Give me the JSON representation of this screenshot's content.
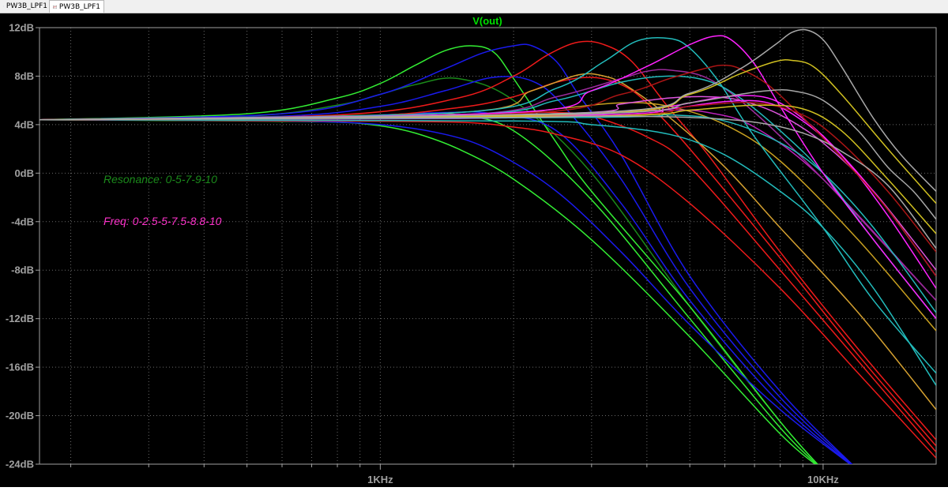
{
  "tabs": [
    {
      "label": "PW3B_LPF1",
      "icon": "schematic-icon"
    },
    {
      "label": "PW3B_LPF1",
      "icon": "waveform-icon"
    }
  ],
  "colors": {
    "background": "#000000",
    "axis": "#a0a0a0",
    "grid": "#6a6a6a",
    "title": "#00e000",
    "resonance_note": "#1b8a1b",
    "freq_note": "#ff33cc"
  },
  "annotations": {
    "resonance": "Resonance: 0-5-7-9-10",
    "freq": "Freq: 0-2.5-5-7.5-8.8-10"
  },
  "chart_data": {
    "type": "line",
    "title": "V(out)",
    "xlabel": "",
    "ylabel": "",
    "x_scale": "log",
    "xlim": [
      170,
      18000
    ],
    "ylim": [
      -24,
      12
    ],
    "x_ticks": [
      {
        "value": 1000,
        "label": "1KHz"
      },
      {
        "value": 10000,
        "label": "10KHz"
      }
    ],
    "y_ticks": [
      {
        "value": 12,
        "label": "12dB"
      },
      {
        "value": 8,
        "label": "8dB"
      },
      {
        "value": 4,
        "label": "4dB"
      },
      {
        "value": 0,
        "label": "0dB"
      },
      {
        "value": -4,
        "label": "-4dB"
      },
      {
        "value": -8,
        "label": "-8dB"
      },
      {
        "value": -12,
        "label": "-12dB"
      },
      {
        "value": -16,
        "label": "-16dB"
      },
      {
        "value": -20,
        "label": "-20dB"
      },
      {
        "value": -24,
        "label": "-24dB"
      }
    ],
    "grid": true,
    "series": [
      {
        "color": "#33ee33",
        "x": [
          170,
          500,
          800,
          1000,
          1200,
          1500,
          2000,
          3000,
          5000,
          8000,
          10000
        ],
        "y": [
          4.4,
          4.3,
          4.2,
          3.9,
          3.3,
          2.0,
          -0.5,
          -5.5,
          -13.5,
          -21.5,
          -24.5
        ]
      },
      {
        "color": "#33ee33",
        "x": [
          170,
          500,
          800,
          1000,
          1200,
          1500,
          2000,
          3000,
          5000,
          8000,
          10000
        ],
        "y": [
          4.4,
          4.5,
          4.7,
          4.8,
          4.9,
          4.8,
          3.5,
          -2.2,
          -12,
          -21,
          -24.5
        ]
      },
      {
        "color": "#1a8a1a",
        "x": [
          170,
          500,
          800,
          1000,
          1200,
          1500,
          2000,
          3000,
          5000,
          8000,
          10000
        ],
        "y": [
          4.4,
          4.7,
          5.6,
          6.5,
          7.3,
          7.8,
          6.0,
          0.0,
          -11,
          -20.5,
          -24.5
        ]
      },
      {
        "color": "#33ee33",
        "x": [
          170,
          500,
          800,
          1000,
          1200,
          1400,
          1600,
          1800,
          2000,
          2500,
          3000,
          5000,
          8000,
          10000
        ],
        "y": [
          4.4,
          4.9,
          6.2,
          7.4,
          8.9,
          10.1,
          10.5,
          10.0,
          7.8,
          2.5,
          -1.5,
          -11,
          -20.5,
          -24.5
        ]
      },
      {
        "color": "#1a1aee",
        "x": [
          170,
          600,
          1000,
          1400,
          1800,
          2500,
          3500,
          5000,
          8000,
          12000
        ],
        "y": [
          4.4,
          4.3,
          4.0,
          3.2,
          1.8,
          -1.5,
          -6.5,
          -12.5,
          -19.5,
          -24.5
        ]
      },
      {
        "color": "#1a1aee",
        "x": [
          170,
          600,
          1000,
          1400,
          1800,
          2500,
          3500,
          5000,
          8000,
          12000
        ],
        "y": [
          4.4,
          4.5,
          4.8,
          5.0,
          4.9,
          3.5,
          -2.5,
          -10.5,
          -19,
          -24.5
        ]
      },
      {
        "color": "#1a1aee",
        "x": [
          170,
          600,
          1000,
          1400,
          1800,
          2200,
          2600,
          3500,
          5000,
          8000,
          12000
        ],
        "y": [
          4.4,
          4.7,
          5.5,
          6.8,
          7.9,
          7.6,
          5.5,
          -0.5,
          -9.5,
          -18.5,
          -24.5
        ]
      },
      {
        "color": "#1a1aee",
        "x": [
          170,
          600,
          1000,
          1400,
          1700,
          2000,
          2200,
          2500,
          2800,
          3500,
          5000,
          8000,
          12000
        ],
        "y": [
          4.4,
          4.9,
          6.5,
          8.6,
          9.9,
          10.5,
          10.5,
          9.2,
          6.5,
          1.5,
          -8.5,
          -18,
          -24.5
        ]
      },
      {
        "color": "#ee1a1a",
        "x": [
          170,
          800,
          1500,
          2000,
          2500,
          3500,
          5000,
          8000,
          12000,
          18000
        ],
        "y": [
          4.4,
          4.3,
          4.2,
          3.8,
          3.2,
          1.5,
          -2.5,
          -9.5,
          -16.5,
          -23.5
        ]
      },
      {
        "color": "#ee1a1a",
        "x": [
          170,
          800,
          1500,
          2000,
          2500,
          3000,
          4000,
          5000,
          8000,
          12000,
          18000
        ],
        "y": [
          4.4,
          4.5,
          4.8,
          5.0,
          5.0,
          4.7,
          3.0,
          0.5,
          -8.0,
          -15.5,
          -23
        ]
      },
      {
        "color": "#ee1a1a",
        "x": [
          170,
          800,
          1500,
          2000,
          2500,
          3000,
          3500,
          4000,
          5000,
          8000,
          12000,
          18000
        ],
        "y": [
          4.4,
          4.6,
          5.4,
          6.3,
          7.5,
          7.9,
          7.3,
          5.8,
          2.0,
          -7.0,
          -15,
          -22.5
        ]
      },
      {
        "color": "#ee1a1a",
        "x": [
          170,
          800,
          1500,
          2000,
          2400,
          2800,
          3200,
          3700,
          4500,
          5500,
          8000,
          12000,
          18000
        ],
        "y": [
          4.4,
          4.8,
          6.2,
          8.0,
          9.8,
          10.8,
          10.6,
          9.2,
          5.3,
          1.5,
          -6.5,
          -14.5,
          -22
        ]
      },
      {
        "color": "#c8a020",
        "x": [
          170,
          1500,
          2500,
          3500,
          4500,
          6000,
          8000,
          12000,
          18000
        ],
        "y": [
          4.4,
          4.6,
          5.3,
          5.8,
          5.5,
          4.0,
          1.0,
          -5.5,
          -13.0
        ]
      },
      {
        "color": "#d4a030",
        "x": [
          170,
          1500,
          2200,
          2800,
          3200,
          3600,
          4500,
          6000,
          8000,
          12000,
          18000
        ],
        "y": [
          4.4,
          5.0,
          6.8,
          8.1,
          8.0,
          7.2,
          4.6,
          0.5,
          -4.5,
          -11.5,
          -19.5
        ]
      },
      {
        "color": "#bb22bb",
        "x": [
          170,
          1500,
          2500,
          3500,
          4500,
          5500,
          7000,
          10000,
          18000
        ],
        "y": [
          4.4,
          4.5,
          4.8,
          5.1,
          5.2,
          5.0,
          3.8,
          -0.5,
          -10.5
        ]
      },
      {
        "color": "#9a2a9a",
        "x": [
          170,
          1500,
          2500,
          3500,
          4000,
          4500,
          5500,
          7000,
          10000,
          18000
        ],
        "y": [
          4.4,
          4.8,
          6.3,
          7.8,
          8.4,
          8.5,
          7.8,
          5.0,
          -0.5,
          -10.5
        ]
      },
      {
        "color": "#dd55dd",
        "x": [
          170,
          2500,
          3500,
          4500,
          5500,
          6500,
          8000,
          10000,
          13000,
          18000
        ],
        "y": [
          4.4,
          4.9,
          5.7,
          6.2,
          6.3,
          6.0,
          4.8,
          2.5,
          -1.5,
          -8.0
        ]
      },
      {
        "color": "#22bbbb",
        "x": [
          170,
          1500,
          2500,
          3500,
          4500,
          5500,
          6500,
          8000,
          10000,
          13000,
          18000
        ],
        "y": [
          4.4,
          4.8,
          6.0,
          7.5,
          8.0,
          7.6,
          6.2,
          3.5,
          0.0,
          -5.5,
          -12.0
        ]
      },
      {
        "color": "#22bbbb",
        "x": [
          170,
          1500,
          2500,
          3200,
          3800,
          4500,
          5000,
          5800,
          7000,
          10000,
          13000,
          18000
        ],
        "y": [
          4.4,
          5.0,
          7.0,
          9.2,
          10.9,
          11.1,
          10.3,
          7.6,
          3.0,
          -4.5,
          -10.5,
          -16.5
        ]
      },
      {
        "color": "#22bbbb",
        "x": [
          170,
          3000,
          4500,
          6000,
          8000,
          10000,
          13000,
          18000
        ],
        "y": [
          4.4,
          4.6,
          4.8,
          4.3,
          2.5,
          0.0,
          -4.5,
          -11.5
        ]
      },
      {
        "color": "#22bbbb",
        "x": [
          170,
          2000,
          3000,
          4500,
          6000,
          8000,
          10000,
          13000,
          18000
        ],
        "y": [
          4.4,
          4.3,
          4.0,
          3.2,
          1.5,
          -1.5,
          -4.5,
          -9.5,
          -17.5
        ]
      },
      {
        "color": "#ff22ff",
        "x": [
          170,
          2000,
          3000,
          4000,
          5000,
          5700,
          6200,
          7000,
          8000,
          10000,
          13000,
          18000
        ],
        "y": [
          4.4,
          5.0,
          6.8,
          8.8,
          10.6,
          11.3,
          11.0,
          9.0,
          5.5,
          0.0,
          -5.5,
          -12.0
        ]
      },
      {
        "color": "#ff22ff",
        "x": [
          170,
          3000,
          4500,
          6000,
          7500,
          9000,
          11000,
          14000,
          18000
        ],
        "y": [
          4.4,
          4.8,
          5.5,
          6.3,
          6.2,
          4.5,
          1.5,
          -3.5,
          -9.5
        ]
      },
      {
        "color": "#ff22ff",
        "x": [
          170,
          3000,
          4500,
          6000,
          7500,
          9000,
          11000,
          14000,
          18000
        ],
        "y": [
          4.4,
          4.7,
          5.3,
          5.9,
          5.8,
          4.3,
          1.5,
          -3.0,
          -8.5
        ]
      },
      {
        "color": "#aa1515",
        "x": [
          170,
          2000,
          3500,
          4500,
          5500,
          6000,
          6500,
          7500,
          9000,
          11000,
          14000,
          18000
        ],
        "y": [
          4.4,
          4.9,
          6.5,
          7.8,
          8.7,
          8.9,
          8.6,
          7.3,
          4.6,
          1.3,
          -3.0,
          -8.5
        ]
      },
      {
        "color": "#aa1515",
        "x": [
          170,
          3000,
          5000,
          7000,
          9000,
          11000,
          14000,
          18000
        ],
        "y": [
          4.4,
          4.7,
          5.5,
          5.8,
          4.8,
          2.5,
          -1.5,
          -6.5
        ]
      },
      {
        "color": "#d0c020",
        "x": [
          170,
          3000,
          5000,
          6500,
          7800,
          8500,
          9500,
          11000,
          14000,
          18000
        ],
        "y": [
          4.4,
          4.9,
          6.5,
          8.2,
          9.2,
          9.3,
          8.8,
          6.5,
          2.0,
          -2.5
        ]
      },
      {
        "color": "#d0c020",
        "x": [
          170,
          3000,
          5000,
          7000,
          9000,
          11000,
          14000,
          18000
        ],
        "y": [
          4.4,
          4.7,
          5.2,
          5.6,
          5.3,
          3.5,
          -0.5,
          -5.0
        ]
      },
      {
        "color": "#a8a8a8",
        "x": [
          170,
          3000,
          5000,
          6500,
          7800,
          8500,
          9200,
          10000,
          11000,
          13000,
          15000,
          18000
        ],
        "y": [
          4.4,
          5.0,
          6.6,
          8.6,
          10.6,
          11.6,
          11.8,
          11.0,
          8.8,
          4.5,
          1.5,
          -1.5
        ]
      },
      {
        "color": "#a8a8a8",
        "x": [
          170,
          3000,
          5000,
          6500,
          7500,
          8500,
          10000,
          12000,
          14000,
          16000,
          18000
        ],
        "y": [
          4.4,
          4.9,
          5.8,
          6.5,
          6.8,
          6.8,
          6.0,
          3.5,
          0.5,
          -1.5,
          -3.8
        ]
      },
      {
        "color": "#a8a8a8",
        "x": [
          170,
          2000,
          3000,
          5000,
          7000,
          9000,
          11000,
          14000,
          18000
        ],
        "y": [
          4.4,
          4.6,
          4.7,
          4.6,
          4.2,
          3.3,
          1.8,
          -1.0,
          -6.2
        ]
      }
    ]
  }
}
